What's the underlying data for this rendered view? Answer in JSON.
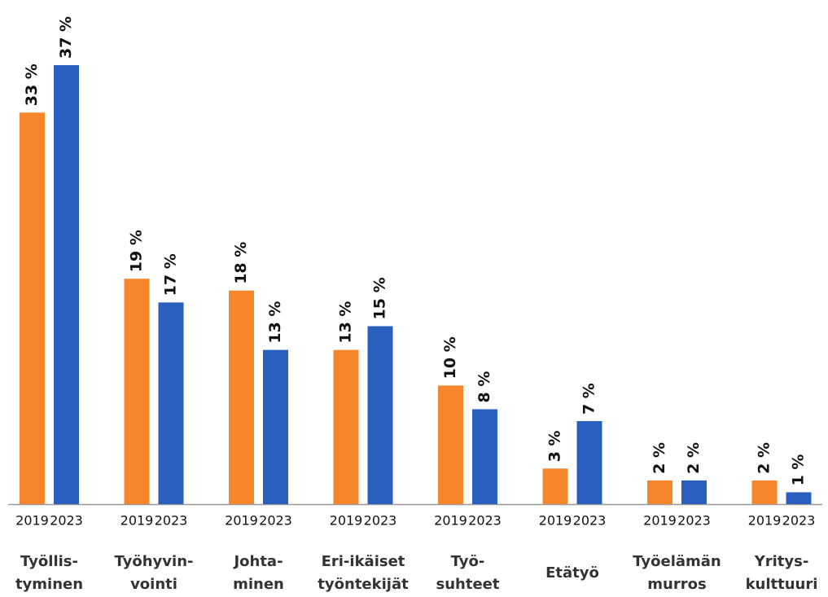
{
  "chart_data": {
    "type": "bar",
    "categories": [
      [
        "Työllis-",
        "tyminen"
      ],
      [
        "Työhyvin-",
        "vointi"
      ],
      [
        "Johta-",
        "minen"
      ],
      [
        "Eri-ikäiset",
        "työntekijät"
      ],
      [
        "Työ-",
        "suhteet"
      ],
      [
        "Etätyö"
      ],
      [
        "Työelämän",
        "murros"
      ],
      [
        "Yritys-",
        "kulttuuri"
      ]
    ],
    "series": [
      {
        "name": "2019",
        "color": "#f5862b",
        "values": [
          33,
          19,
          18,
          13,
          10,
          3,
          2,
          2
        ],
        "value_labels": [
          "33 %",
          "19 %",
          "18 %",
          "13 %",
          "10 %",
          "3 %",
          "2 %",
          "2 %"
        ]
      },
      {
        "name": "2023",
        "color": "#2b5fbf",
        "values": [
          37,
          17,
          13,
          15,
          8,
          7,
          2,
          1
        ],
        "value_labels": [
          "37 %",
          "17 %",
          "13 %",
          "15 %",
          "8 %",
          "7 %",
          "2 %",
          "1 %"
        ]
      }
    ]
  }
}
